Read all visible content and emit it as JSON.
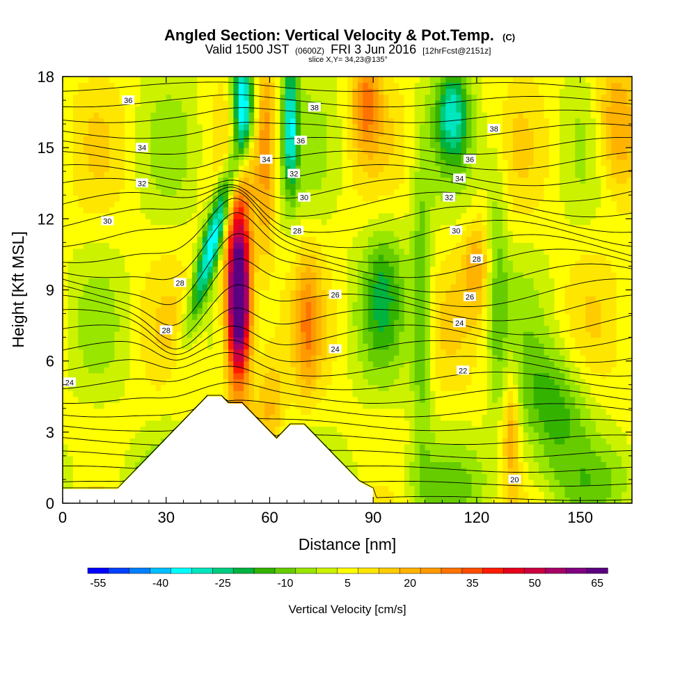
{
  "chart_data": {
    "type": "heatmap",
    "title": "Angled Section: Vertical Velocity & Pot.Temp.",
    "title_tag": "(C)",
    "subtitle": {
      "valid_prefix": "Valid 1500 JST",
      "utc_tag": "(0600Z)",
      "date": "FRI 3 Jun 2016",
      "fcst_tag": "[12hrFcst@2151z]"
    },
    "slice_text": "slice X,Y= 34,23@135°",
    "xlabel": "Distance [nm]",
    "ylabel": "Height [Kft MSL]",
    "xlim": [
      0,
      165
    ],
    "ylim": [
      0,
      18
    ],
    "x_ticks": [
      0,
      30,
      60,
      90,
      120,
      150
    ],
    "y_ticks": [
      0,
      3,
      6,
      9,
      12,
      15,
      18
    ],
    "colorbar": {
      "label": "Vertical Velocity [cm/s]",
      "ticks": [
        "-55",
        "-40",
        "-25",
        "-10",
        "5",
        "20",
        "35",
        "50",
        "65"
      ],
      "colors": [
        "#0000ff",
        "#0040ff",
        "#0080ff",
        "#00bfff",
        "#00ffff",
        "#00e6bf",
        "#00cc7f",
        "#00b33f",
        "#33b300",
        "#66cc00",
        "#99e600",
        "#ccf200",
        "#ffff00",
        "#ffe600",
        "#ffcc00",
        "#ffb300",
        "#ff9900",
        "#ff7300",
        "#ff4c00",
        "#ff1a00",
        "#e6001a",
        "#cc0040",
        "#a60066",
        "#800080",
        "#5a0080"
      ]
    },
    "terrain": [
      [
        0,
        0.6
      ],
      [
        10,
        0.6
      ],
      [
        10,
        0.6
      ],
      [
        16,
        0.6
      ],
      [
        18,
        0.9
      ],
      [
        20,
        1.2
      ],
      [
        22,
        1.5
      ],
      [
        24,
        1.8
      ],
      [
        26,
        2.1
      ],
      [
        28,
        2.4
      ],
      [
        30,
        2.7
      ],
      [
        32,
        3.0
      ],
      [
        34,
        3.3
      ],
      [
        36,
        3.6
      ],
      [
        38,
        3.9
      ],
      [
        40,
        4.2
      ],
      [
        42,
        4.5
      ],
      [
        46,
        4.5
      ],
      [
        48,
        4.2
      ],
      [
        52,
        4.2
      ],
      [
        54,
        3.9
      ],
      [
        56,
        3.6
      ],
      [
        58,
        3.3
      ],
      [
        60,
        3.0
      ],
      [
        62,
        2.7
      ],
      [
        64,
        3.0
      ],
      [
        66,
        3.3
      ],
      [
        70,
        3.3
      ],
      [
        72,
        3.0
      ],
      [
        74,
        2.7
      ],
      [
        76,
        2.4
      ],
      [
        78,
        2.1
      ],
      [
        80,
        1.8
      ],
      [
        82,
        1.5
      ],
      [
        84,
        1.2
      ],
      [
        86,
        0.9
      ],
      [
        90,
        0.6
      ],
      [
        90,
        0
      ]
    ],
    "pot_temp_labels": [
      {
        "v": "36",
        "x": 19,
        "y": 17.0
      },
      {
        "v": "34",
        "x": 23,
        "y": 15.0
      },
      {
        "v": "32",
        "x": 23,
        "y": 13.5
      },
      {
        "v": "30",
        "x": 13,
        "y": 11.9
      },
      {
        "v": "28",
        "x": 34,
        "y": 9.3
      },
      {
        "v": "28",
        "x": 30,
        "y": 7.3
      },
      {
        "v": "24",
        "x": 2,
        "y": 5.1
      },
      {
        "v": "34",
        "x": 59,
        "y": 14.5
      },
      {
        "v": "38",
        "x": 73,
        "y": 16.7
      },
      {
        "v": "36",
        "x": 69,
        "y": 15.3
      },
      {
        "v": "32",
        "x": 67,
        "y": 13.9
      },
      {
        "v": "30",
        "x": 70,
        "y": 12.9
      },
      {
        "v": "28",
        "x": 68,
        "y": 11.5
      },
      {
        "v": "26",
        "x": 79,
        "y": 8.8
      },
      {
        "v": "24",
        "x": 79,
        "y": 6.5
      },
      {
        "v": "38",
        "x": 125,
        "y": 15.8
      },
      {
        "v": "36",
        "x": 118,
        "y": 14.5
      },
      {
        "v": "34",
        "x": 115,
        "y": 13.7
      },
      {
        "v": "32",
        "x": 112,
        "y": 12.9
      },
      {
        "v": "30",
        "x": 114,
        "y": 11.5
      },
      {
        "v": "28",
        "x": 120,
        "y": 10.3
      },
      {
        "v": "26",
        "x": 118,
        "y": 8.7
      },
      {
        "v": "24",
        "x": 115,
        "y": 7.6
      },
      {
        "v": "22",
        "x": 116,
        "y": 5.6
      },
      {
        "v": "20",
        "x": 131,
        "y": 1.0
      }
    ]
  }
}
